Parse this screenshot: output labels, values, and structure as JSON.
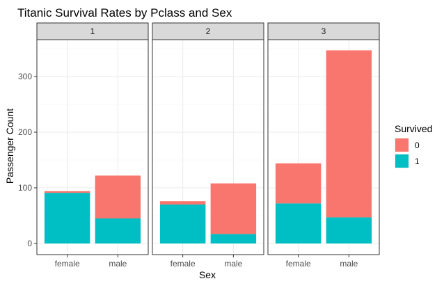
{
  "chart_data": {
    "type": "bar",
    "stacked": true,
    "title": "Titanic Survival Rates by Pclass and Sex",
    "xlabel": "Sex",
    "ylabel": "Passenger Count",
    "facets": [
      "1",
      "2",
      "3"
    ],
    "categories": [
      "female",
      "male"
    ],
    "ylim": [
      0,
      360
    ],
    "yticks": [
      0,
      100,
      200,
      300
    ],
    "grid": true,
    "legend": {
      "title": "Survived",
      "position": "right",
      "entries": [
        {
          "label": "0",
          "color": "#F8766D"
        },
        {
          "label": "1",
          "color": "#00BFC4"
        }
      ]
    },
    "series": [
      {
        "name": "0",
        "color": "#F8766D",
        "values": [
          [
            3,
            77
          ],
          [
            6,
            91
          ],
          [
            72,
            300
          ]
        ]
      },
      {
        "name": "1",
        "color": "#00BFC4",
        "values": [
          [
            91,
            45
          ],
          [
            70,
            17
          ],
          [
            72,
            47
          ]
        ]
      }
    ]
  }
}
